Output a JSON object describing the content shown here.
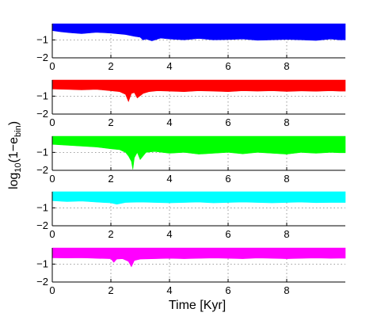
{
  "figure": {
    "xlabel": "Time [Kyr]",
    "ylabel_main": "log",
    "ylabel_sub": "10",
    "ylabel_mid": "(1−e",
    "ylabel_sub2": "bin",
    "ylabel_end": ")"
  },
  "chart_data": [
    {
      "type": "area",
      "color": "#0000ff",
      "xlim": [
        0,
        10
      ],
      "ylim": [
        -2,
        -0.1
      ],
      "xticks": [
        0,
        2,
        4,
        6,
        8
      ],
      "xtick_labels": [
        "0",
        "2",
        "4",
        "6",
        "8"
      ],
      "yticks": [
        -1,
        -2
      ],
      "ytick_labels": [
        "−1",
        "−2"
      ],
      "grid": true,
      "band_top": -0.1,
      "x": [
        0,
        0.3,
        0.6,
        1.0,
        1.5,
        2.0,
        2.5,
        2.8,
        3.0,
        3.1,
        3.2,
        3.4,
        3.7,
        4.0,
        4.5,
        5.0,
        5.5,
        6.0,
        6.5,
        7.0,
        7.5,
        8.0,
        8.5,
        9.0,
        9.5,
        9.8
      ],
      "lower": [
        -0.48,
        -0.55,
        -0.6,
        -0.65,
        -0.58,
        -0.62,
        -0.7,
        -0.8,
        -0.85,
        -1.0,
        -0.95,
        -1.05,
        -0.9,
        -0.95,
        -1.0,
        -0.92,
        -1.0,
        -0.98,
        -0.95,
        -1.02,
        -1.0,
        -0.97,
        -1.0,
        -1.03,
        -0.95,
        -1.0
      ]
    },
    {
      "type": "area",
      "color": "#ff0000",
      "xlim": [
        0,
        10
      ],
      "ylim": [
        -2,
        -0.1
      ],
      "xticks": [
        0,
        2,
        4,
        6,
        8
      ],
      "xtick_labels": [
        "0",
        "2",
        "4",
        "6",
        "8"
      ],
      "yticks": [
        -1,
        -2
      ],
      "ytick_labels": [
        "−1",
        "−2"
      ],
      "grid": true,
      "band_top": -0.1,
      "x": [
        0,
        0.5,
        1.0,
        1.5,
        2.0,
        2.3,
        2.5,
        2.6,
        2.7,
        2.8,
        2.9,
        3.1,
        3.3,
        3.6,
        4.0,
        4.5,
        5.0,
        5.5,
        6.0,
        6.5,
        7.0,
        7.5,
        8.0,
        8.5,
        9.0,
        9.5,
        9.8
      ],
      "lower": [
        -0.6,
        -0.62,
        -0.65,
        -0.62,
        -0.7,
        -0.75,
        -0.9,
        -1.3,
        -0.85,
        -0.8,
        -1.1,
        -0.85,
        -0.75,
        -0.7,
        -0.72,
        -0.75,
        -0.7,
        -0.72,
        -0.75,
        -0.7,
        -0.72,
        -0.7,
        -0.74,
        -0.71,
        -0.73,
        -0.7,
        -0.72
      ]
    },
    {
      "type": "area",
      "color": "#00ff00",
      "xlim": [
        0,
        10
      ],
      "ylim": [
        -2,
        -0.1
      ],
      "xticks": [
        0,
        2,
        4,
        6,
        8
      ],
      "xtick_labels": [
        "0",
        "2",
        "4",
        "6",
        "8"
      ],
      "yticks": [
        -1,
        -2
      ],
      "ytick_labels": [
        "−1",
        "−2"
      ],
      "grid": true,
      "band_top": -0.1,
      "x": [
        0,
        0.5,
        1.0,
        1.5,
        2.0,
        2.3,
        2.5,
        2.6,
        2.7,
        2.75,
        2.8,
        2.9,
        3.0,
        3.2,
        3.5,
        4.0,
        4.5,
        5.0,
        5.5,
        6.0,
        6.5,
        7.0,
        7.5,
        8.0,
        8.5,
        9.0,
        9.5,
        9.8
      ],
      "lower": [
        -0.55,
        -0.6,
        -0.65,
        -0.7,
        -0.8,
        -0.85,
        -1.0,
        -1.2,
        -1.5,
        -1.95,
        -1.3,
        -1.0,
        -1.4,
        -1.0,
        -0.95,
        -1.05,
        -1.0,
        -1.1,
        -1.05,
        -1.0,
        -1.08,
        -1.0,
        -1.05,
        -1.1,
        -1.0,
        -1.05,
        -1.0,
        -1.02
      ]
    },
    {
      "type": "area",
      "color": "#00ffff",
      "xlim": [
        0,
        10
      ],
      "ylim": [
        -2,
        -0.1
      ],
      "xticks": [
        0,
        2,
        4,
        6,
        8
      ],
      "xtick_labels": [
        "0",
        "2",
        "4",
        "6",
        "8"
      ],
      "yticks": [
        -1,
        -2
      ],
      "ytick_labels": [
        "−1",
        "−2"
      ],
      "grid": true,
      "band_top": -0.1,
      "x": [
        0,
        0.5,
        1.0,
        1.5,
        2.0,
        2.2,
        2.5,
        3.0,
        3.5,
        4.0,
        4.5,
        5.0,
        5.5,
        6.0,
        6.5,
        7.0,
        7.5,
        8.0,
        8.5,
        9.0,
        9.5,
        9.8
      ],
      "lower": [
        -0.6,
        -0.65,
        -0.62,
        -0.68,
        -0.72,
        -0.8,
        -0.7,
        -0.68,
        -0.7,
        -0.72,
        -0.7,
        -0.68,
        -0.72,
        -0.7,
        -0.68,
        -0.7,
        -0.72,
        -0.7,
        -0.68,
        -0.71,
        -0.7,
        -0.7
      ]
    },
    {
      "type": "area",
      "color": "#ff00ff",
      "xlim": [
        0,
        10
      ],
      "ylim": [
        -2,
        -0.1
      ],
      "xticks": [
        0,
        2,
        4,
        6,
        8
      ],
      "xtick_labels": [
        "0",
        "2",
        "4",
        "6",
        "8"
      ],
      "yticks": [
        -1,
        -2
      ],
      "ytick_labels": [
        "−1",
        "−2"
      ],
      "grid": true,
      "band_top": -0.1,
      "x": [
        0,
        0.5,
        1.0,
        1.5,
        2.0,
        2.1,
        2.2,
        2.4,
        2.6,
        2.7,
        2.8,
        3.0,
        3.5,
        4.0,
        4.5,
        5.0,
        5.5,
        6.0,
        6.5,
        7.0,
        7.5,
        8.0,
        8.5,
        9.0,
        9.5,
        9.8
      ],
      "lower": [
        -0.65,
        -0.66,
        -0.65,
        -0.68,
        -0.7,
        -0.9,
        -0.72,
        -0.7,
        -0.85,
        -1.15,
        -0.8,
        -0.72,
        -0.7,
        -0.68,
        -0.7,
        -0.68,
        -0.66,
        -0.68,
        -0.7,
        -0.66,
        -0.68,
        -0.7,
        -0.68,
        -0.66,
        -0.68,
        -0.67
      ]
    }
  ]
}
